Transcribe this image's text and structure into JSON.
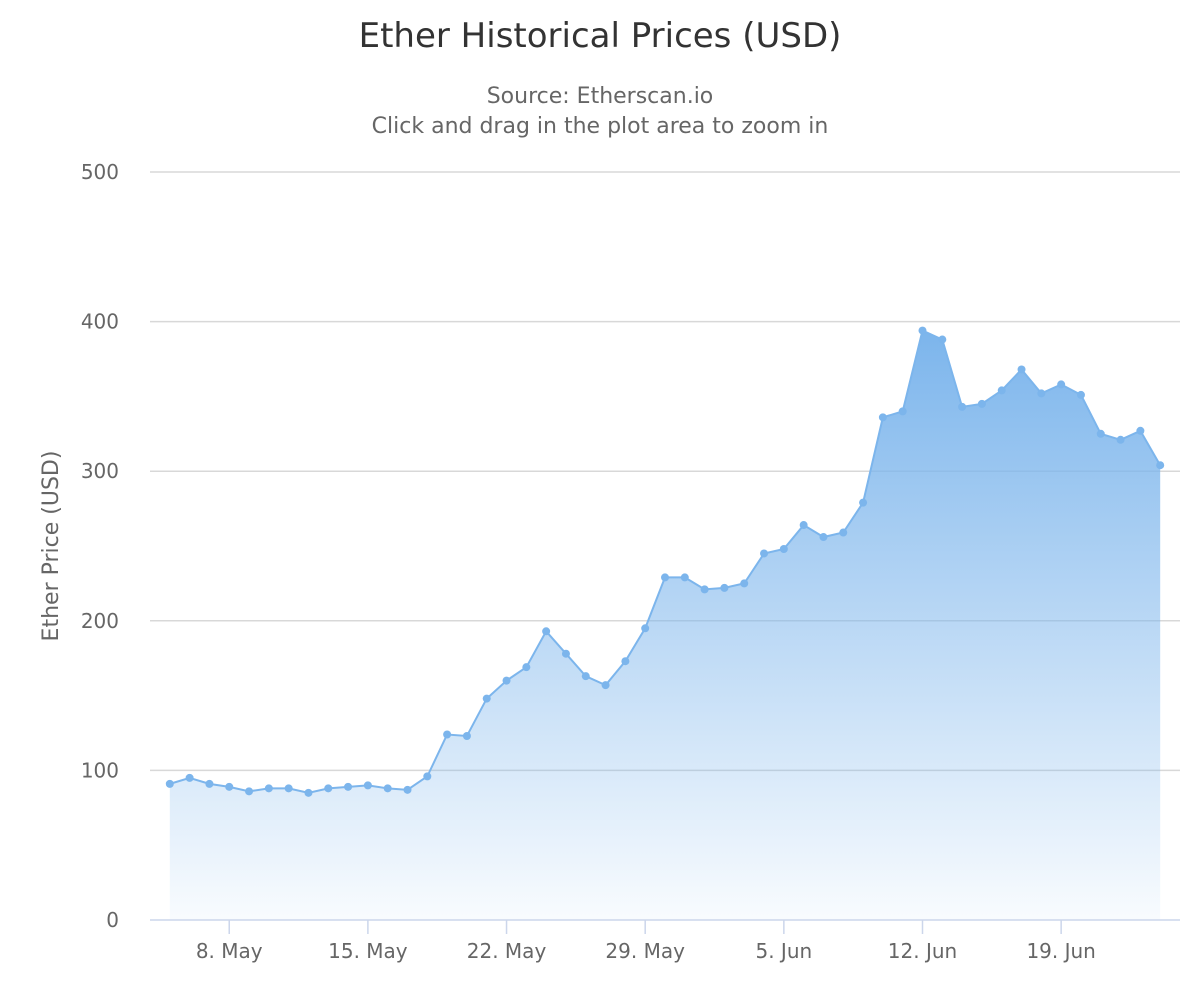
{
  "chart_data": {
    "type": "area",
    "title": "Ether Historical Prices (USD)",
    "subtitles": [
      "Source: Etherscan.io",
      "Click and drag in the plot area to zoom in"
    ],
    "ylabel": "Ether Price (USD)",
    "xlabel": "",
    "ylim": [
      0,
      500
    ],
    "yticks": [
      0,
      100,
      200,
      300,
      400,
      500
    ],
    "xlim": [
      "2016-05-04",
      "2016-06-25"
    ],
    "xticks": [
      {
        "date": "2016-05-08",
        "label": "8. May"
      },
      {
        "date": "2016-05-15",
        "label": "15. May"
      },
      {
        "date": "2016-05-22",
        "label": "22. May"
      },
      {
        "date": "2016-05-29",
        "label": "29. May"
      },
      {
        "date": "2016-06-05",
        "label": "5. Jun"
      },
      {
        "date": "2016-06-12",
        "label": "12. Jun"
      },
      {
        "date": "2016-06-19",
        "label": "19. Jun"
      }
    ],
    "grid": true,
    "legend": "none",
    "colors": {
      "line": "#7cb5ec",
      "fill_top": "#7cb5ec",
      "grid": "#d8d8d8",
      "axis": "#ccd6eb"
    },
    "series": [
      {
        "x": [
          "2016-05-05",
          "2016-05-06",
          "2016-05-07",
          "2016-05-08",
          "2016-05-09",
          "2016-05-10",
          "2016-05-11",
          "2016-05-12",
          "2016-05-13",
          "2016-05-14",
          "2016-05-15",
          "2016-05-16",
          "2016-05-17",
          "2016-05-18",
          "2016-05-19",
          "2016-05-20",
          "2016-05-21",
          "2016-05-22",
          "2016-05-23",
          "2016-05-24",
          "2016-05-25",
          "2016-05-26",
          "2016-05-27",
          "2016-05-28",
          "2016-05-29",
          "2016-05-30",
          "2016-05-31",
          "2016-06-01",
          "2016-06-02",
          "2016-06-03",
          "2016-06-04",
          "2016-06-05",
          "2016-06-06",
          "2016-06-07",
          "2016-06-08",
          "2016-06-09",
          "2016-06-10",
          "2016-06-11",
          "2016-06-12",
          "2016-06-13",
          "2016-06-14",
          "2016-06-15",
          "2016-06-16",
          "2016-06-17",
          "2016-06-18",
          "2016-06-19",
          "2016-06-20",
          "2016-06-21",
          "2016-06-22",
          "2016-06-23",
          "2016-06-24"
        ],
        "values": [
          91,
          95,
          91,
          89,
          86,
          88,
          88,
          85,
          88,
          89,
          90,
          88,
          87,
          96,
          124,
          123,
          148,
          160,
          169,
          193,
          178,
          163,
          157,
          173,
          195,
          229,
          229,
          221,
          222,
          225,
          245,
          248,
          264,
          256,
          259,
          279,
          336,
          340,
          394,
          388,
          343,
          345,
          354,
          368,
          352,
          358,
          351,
          325,
          321,
          327,
          304
        ]
      }
    ]
  }
}
